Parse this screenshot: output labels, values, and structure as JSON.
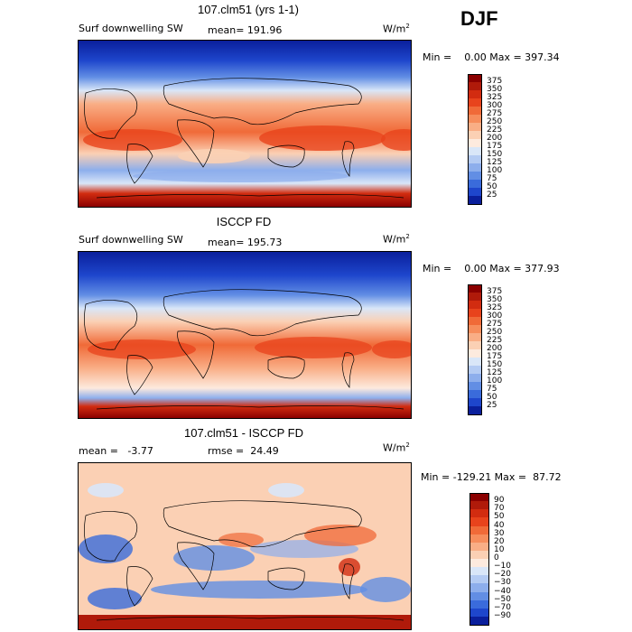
{
  "season": "DJF",
  "panels": [
    {
      "title": "107.clm51 (yrs 1-1)",
      "left_label": "Surf downwelling SW",
      "center_label": "mean= 191.96",
      "units": "W/m",
      "units_sup": "2",
      "minmax": "Min =    0.00 Max = 397.34",
      "colorbar_labels": [
        "375",
        "350",
        "325",
        "300",
        "275",
        "250",
        "225",
        "200",
        "175",
        "150",
        "125",
        "100",
        "75",
        "50",
        "25"
      ],
      "colors": [
        "#8b0000",
        "#b01a0a",
        "#d22c10",
        "#e8431c",
        "#f06a38",
        "#f68d5c",
        "#f9ae86",
        "#fbd0b4",
        "#fdeade",
        "#d9e6f8",
        "#b4cbf3",
        "#8daeec",
        "#628ee4",
        "#3a6bdb",
        "#1e46cc",
        "#0a1f9c"
      ]
    },
    {
      "title": "ISCCP FD",
      "left_label": "Surf downwelling SW",
      "center_label": "mean= 195.73",
      "units": "W/m",
      "units_sup": "2",
      "minmax": "Min =    0.00 Max = 377.93",
      "colorbar_labels": [
        "375",
        "350",
        "325",
        "300",
        "275",
        "250",
        "225",
        "200",
        "175",
        "150",
        "125",
        "100",
        "75",
        "50",
        "25"
      ],
      "colors": [
        "#8b0000",
        "#b01a0a",
        "#d22c10",
        "#e8431c",
        "#f06a38",
        "#f68d5c",
        "#f9ae86",
        "#fbd0b4",
        "#fdeade",
        "#d9e6f8",
        "#b4cbf3",
        "#8daeec",
        "#628ee4",
        "#3a6bdb",
        "#1e46cc",
        "#0a1f9c"
      ]
    },
    {
      "title": "107.clm51 - ISCCP FD",
      "left_label": "mean =   -3.77",
      "center_label": "rmse =  24.49",
      "units": "W/m",
      "units_sup": "2",
      "minmax": "Min = -129.21 Max =  87.72",
      "colorbar_labels": [
        "90",
        "70",
        "50",
        "40",
        "30",
        "20",
        "10",
        "0",
        "−10",
        "−20",
        "−30",
        "−40",
        "−50",
        "−70",
        "−90"
      ],
      "colors": [
        "#8b0000",
        "#b01a0a",
        "#d22c10",
        "#e8431c",
        "#f06a38",
        "#f68d5c",
        "#f9ae86",
        "#fbd0b4",
        "#fdeade",
        "#d9e6f8",
        "#b4cbf3",
        "#8daeec",
        "#628ee4",
        "#3a6bdb",
        "#1e46cc",
        "#0a1f9c"
      ]
    }
  ]
}
